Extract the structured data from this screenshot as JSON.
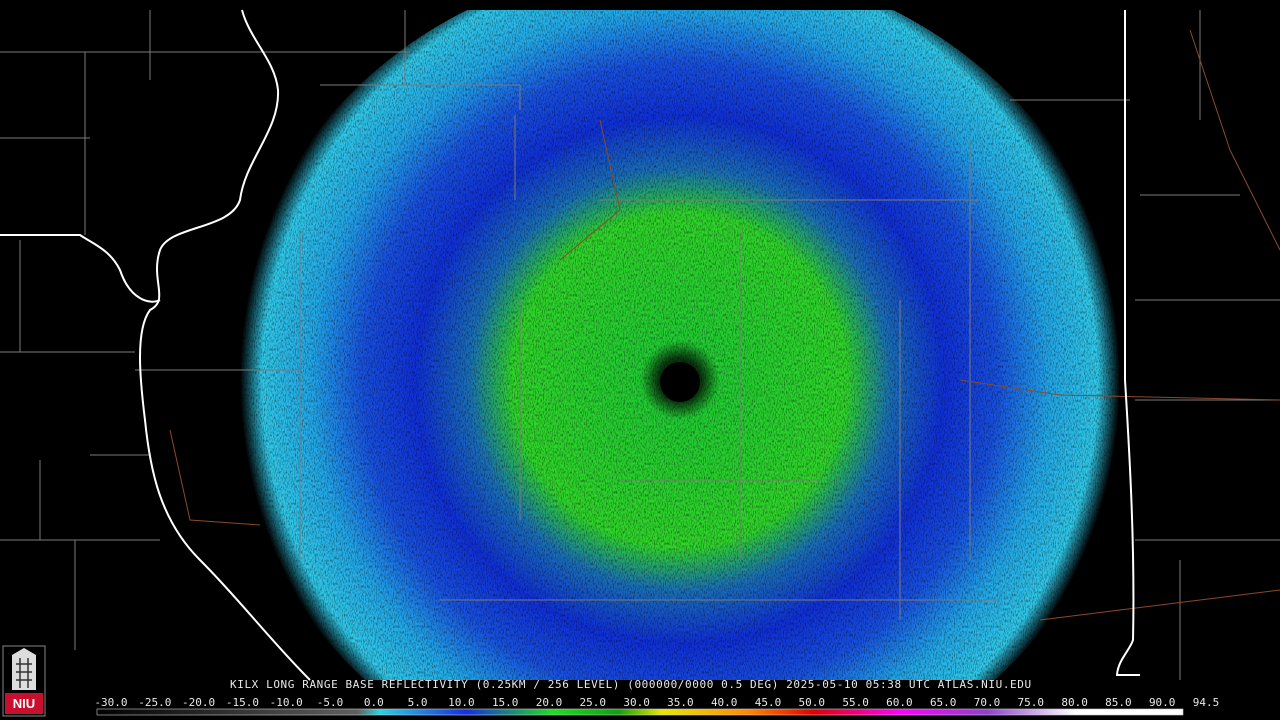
{
  "title": "KILX LONG RANGE BASE REFLECTIVITY (0.25KM / 256 LEVEL) (000000/0000 0.5 DEG) 2025-05-10 05:38 UTC  ATLAS.NIU.EDU",
  "logo": {
    "text": "NIU"
  },
  "colorbar": {
    "labels": [
      "-30.0",
      "-25.0",
      "-20.0",
      "-15.0",
      "-10.0",
      "-5.0",
      "0.0",
      "5.0",
      "10.0",
      "15.0",
      "20.0",
      "25.0",
      "30.0",
      "35.0",
      "40.0",
      "45.0",
      "50.0",
      "55.0",
      "60.0",
      "65.0",
      "70.0",
      "75.0",
      "80.0",
      "85.0",
      "90.0",
      "94.5"
    ]
  }
}
